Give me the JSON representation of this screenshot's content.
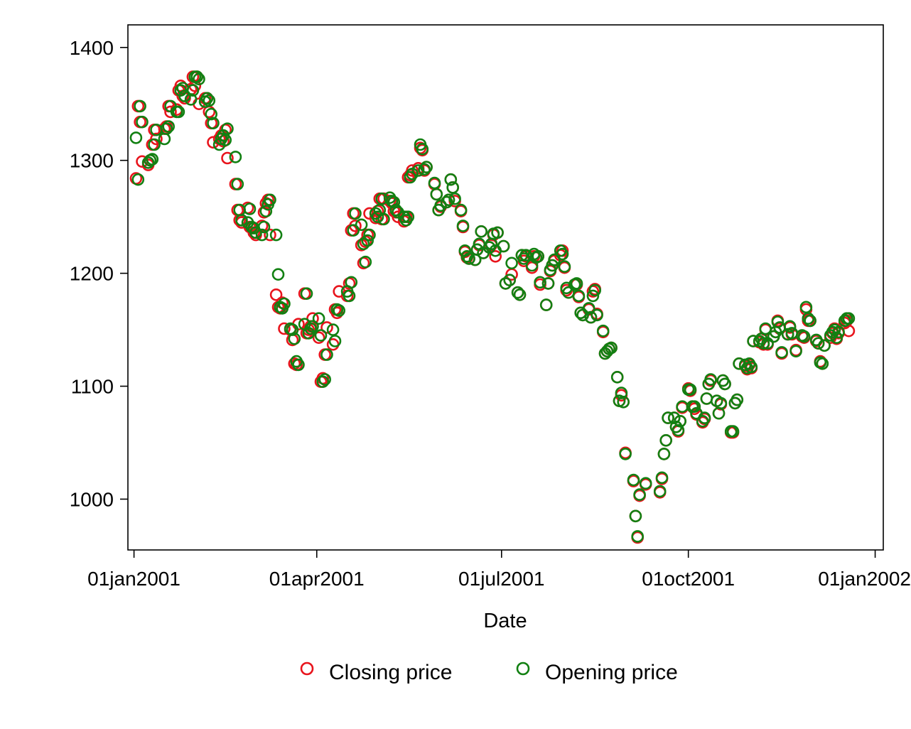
{
  "chart_data": {
    "type": "scatter",
    "title": "",
    "xlabel": "Date",
    "ylabel": "",
    "x_axis": "date",
    "xlim": [
      "2000-12-29",
      "2002-01-05"
    ],
    "ylim": [
      955,
      1420
    ],
    "grid": false,
    "legend_position": "bottom",
    "x_ticks": [
      {
        "date": "2001-01-01",
        "label": "01jan2001"
      },
      {
        "date": "2001-04-01",
        "label": "01apr2001"
      },
      {
        "date": "2001-07-01",
        "label": "01jul2001"
      },
      {
        "date": "2001-10-01",
        "label": "01oct2001"
      },
      {
        "date": "2002-01-01",
        "label": "01jan2002"
      }
    ],
    "y_ticks": [
      {
        "value": 1000,
        "label": "1000"
      },
      {
        "value": 1100,
        "label": "1100"
      },
      {
        "value": 1200,
        "label": "1200"
      },
      {
        "value": 1300,
        "label": "1300"
      },
      {
        "value": 1400,
        "label": "1400"
      }
    ],
    "dates": [
      "2001-01-02",
      "2001-01-03",
      "2001-01-04",
      "2001-01-05",
      "2001-01-08",
      "2001-01-09",
      "2001-01-10",
      "2001-01-11",
      "2001-01-12",
      "2001-01-16",
      "2001-01-17",
      "2001-01-18",
      "2001-01-19",
      "2001-01-22",
      "2001-01-23",
      "2001-01-24",
      "2001-01-25",
      "2001-01-26",
      "2001-01-29",
      "2001-01-30",
      "2001-01-31",
      "2001-02-01",
      "2001-02-02",
      "2001-02-05",
      "2001-02-06",
      "2001-02-07",
      "2001-02-08",
      "2001-02-09",
      "2001-02-12",
      "2001-02-13",
      "2001-02-14",
      "2001-02-15",
      "2001-02-16",
      "2001-02-20",
      "2001-02-21",
      "2001-02-22",
      "2001-02-23",
      "2001-02-26",
      "2001-02-27",
      "2001-02-28",
      "2001-03-01",
      "2001-03-02",
      "2001-03-05",
      "2001-03-06",
      "2001-03-07",
      "2001-03-08",
      "2001-03-09",
      "2001-03-12",
      "2001-03-13",
      "2001-03-14",
      "2001-03-15",
      "2001-03-16",
      "2001-03-19",
      "2001-03-20",
      "2001-03-21",
      "2001-03-22",
      "2001-03-23",
      "2001-03-26",
      "2001-03-27",
      "2001-03-28",
      "2001-03-29",
      "2001-03-30",
      "2001-04-02",
      "2001-04-03",
      "2001-04-04",
      "2001-04-05",
      "2001-04-06",
      "2001-04-09",
      "2001-04-10",
      "2001-04-11",
      "2001-04-12",
      "2001-04-16",
      "2001-04-17",
      "2001-04-18",
      "2001-04-19",
      "2001-04-20",
      "2001-04-23",
      "2001-04-24",
      "2001-04-25",
      "2001-04-26",
      "2001-04-27",
      "2001-04-30",
      "2001-05-01",
      "2001-05-02",
      "2001-05-03",
      "2001-05-04",
      "2001-05-07",
      "2001-05-08",
      "2001-05-09",
      "2001-05-10",
      "2001-05-11",
      "2001-05-14",
      "2001-05-15",
      "2001-05-16",
      "2001-05-17",
      "2001-05-18",
      "2001-05-21",
      "2001-05-22",
      "2001-05-23",
      "2001-05-24",
      "2001-05-25",
      "2001-05-29",
      "2001-05-30",
      "2001-05-31",
      "2001-06-01",
      "2001-06-04",
      "2001-06-05",
      "2001-06-06",
      "2001-06-07",
      "2001-06-08",
      "2001-06-11",
      "2001-06-12",
      "2001-06-13",
      "2001-06-14",
      "2001-06-15",
      "2001-06-18",
      "2001-06-19",
      "2001-06-20",
      "2001-06-21",
      "2001-06-22",
      "2001-06-25",
      "2001-06-26",
      "2001-06-27",
      "2001-06-28",
      "2001-06-29",
      "2001-07-02",
      "2001-07-03",
      "2001-07-05",
      "2001-07-06",
      "2001-07-09",
      "2001-07-10",
      "2001-07-11",
      "2001-07-12",
      "2001-07-13",
      "2001-07-16",
      "2001-07-17",
      "2001-07-18",
      "2001-07-19",
      "2001-07-20",
      "2001-07-23",
      "2001-07-24",
      "2001-07-25",
      "2001-07-26",
      "2001-07-27",
      "2001-07-30",
      "2001-07-31",
      "2001-08-01",
      "2001-08-02",
      "2001-08-03",
      "2001-08-06",
      "2001-08-07",
      "2001-08-08",
      "2001-08-09",
      "2001-08-10",
      "2001-08-13",
      "2001-08-14",
      "2001-08-15",
      "2001-08-16",
      "2001-08-17",
      "2001-08-20",
      "2001-08-21",
      "2001-08-22",
      "2001-08-23",
      "2001-08-24",
      "2001-08-27",
      "2001-08-28",
      "2001-08-29",
      "2001-08-30",
      "2001-08-31",
      "2001-09-04",
      "2001-09-05",
      "2001-09-06",
      "2001-09-07",
      "2001-09-10",
      "2001-09-17",
      "2001-09-18",
      "2001-09-19",
      "2001-09-20",
      "2001-09-21",
      "2001-09-24",
      "2001-09-25",
      "2001-09-26",
      "2001-09-27",
      "2001-09-28",
      "2001-10-01",
      "2001-10-02",
      "2001-10-03",
      "2001-10-04",
      "2001-10-05",
      "2001-10-08",
      "2001-10-09",
      "2001-10-10",
      "2001-10-11",
      "2001-10-12",
      "2001-10-15",
      "2001-10-16",
      "2001-10-17",
      "2001-10-18",
      "2001-10-19",
      "2001-10-22",
      "2001-10-23",
      "2001-10-24",
      "2001-10-25",
      "2001-10-26",
      "2001-10-29",
      "2001-10-30",
      "2001-10-31",
      "2001-11-01",
      "2001-11-02",
      "2001-11-05",
      "2001-11-06",
      "2001-11-07",
      "2001-11-08",
      "2001-11-09",
      "2001-11-12",
      "2001-11-13",
      "2001-11-14",
      "2001-11-15",
      "2001-11-16",
      "2001-11-19",
      "2001-11-20",
      "2001-11-21",
      "2001-11-23",
      "2001-11-26",
      "2001-11-27",
      "2001-11-28",
      "2001-11-29",
      "2001-11-30",
      "2001-12-03",
      "2001-12-04",
      "2001-12-05",
      "2001-12-06",
      "2001-12-07",
      "2001-12-10",
      "2001-12-11",
      "2001-12-12",
      "2001-12-13",
      "2001-12-14",
      "2001-12-17",
      "2001-12-18",
      "2001-12-19",
      "2001-12-20",
      "2001-12-21",
      "2001-12-24",
      "2001-12-26",
      "2001-12-27",
      "2001-12-28",
      "2001-12-31"
    ],
    "series": [
      {
        "name": "Closing price",
        "color": "#e8141c",
        "marker": "hollow-circle",
        "values": [
          1284,
          1348,
          1334,
          1299,
          1296,
          1300,
          1314,
          1327,
          1319,
          1328,
          1330,
          1348,
          1343,
          1345,
          1362,
          1366,
          1357,
          1355,
          1363,
          1374,
          1366,
          1374,
          1350,
          1355,
          1355,
          1343,
          1333,
          1316,
          1319,
          1322,
          1317,
          1327,
          1302,
          1279,
          1256,
          1247,
          1245,
          1258,
          1241,
          1240,
          1236,
          1234,
          1242,
          1254,
          1262,
          1265,
          1234,
          1181,
          1170,
          1169,
          1174,
          1151,
          1150,
          1141,
          1120,
          1119,
          1155,
          1182,
          1147,
          1150,
          1153,
          1160,
          1143,
          1104,
          1107,
          1128,
          1152,
          1137,
          1168,
          1165,
          1184,
          1180,
          1191,
          1238,
          1253,
          1242,
          1225,
          1209,
          1228,
          1234,
          1253,
          1249,
          1255,
          1266,
          1248,
          1266,
          1264,
          1262,
          1255,
          1254,
          1250,
          1246,
          1250,
          1285,
          1287,
          1291,
          1293,
          1311,
          1309,
          1291,
          1294,
          1279,
          1270,
          1256,
          1259,
          1263,
          1265,
          1283,
          1276,
          1264,
          1255,
          1241,
          1219,
          1214,
          1213,
          1212,
          1221,
          1225,
          1237,
          1218,
          1223,
          1225,
          1234,
          1215,
          1236,
          1224,
          1191,
          1194,
          1199,
          1183,
          1181,
          1216,
          1211,
          1215,
          1205,
          1215,
          1214,
          1215,
          1190,
          1172,
          1191,
          1202,
          1207,
          1211,
          1216,
          1220,
          1205,
          1185,
          1183,
          1190,
          1190,
          1179,
          1165,
          1163,
          1168,
          1161,
          1184,
          1186,
          1164,
          1148,
          1129,
          1131,
          1133,
          1134,
          1108,
          1087,
          1092,
          1086,
          1041,
          1016,
          985,
          966,
          1003,
          1013,
          1006,
          1018,
          1040,
          1052,
          1072,
          1072,
          1064,
          1060,
          1069,
          1081,
          1098,
          1096,
          1082,
          1080,
          1075,
          1068,
          1071,
          1089,
          1102,
          1105,
          1087,
          1076,
          1084,
          1105,
          1102,
          1059,
          1059,
          1085,
          1088,
          1120,
          1118,
          1115,
          1119,
          1116,
          1140,
          1139,
          1142,
          1137,
          1150,
          1137,
          1144,
          1148,
          1158,
          1151,
          1129,
          1146,
          1152,
          1146,
          1132,
          1144,
          1143,
          1168,
          1158,
          1158,
          1140,
          1138,
          1122,
          1120,
          1136,
          1143,
          1147,
          1151,
          1142,
          1147,
          1156,
          1158,
          1149
        ]
      },
      {
        "name": "Opening price",
        "color": "#128012",
        "marker": "hollow-circle",
        "values": [
          1320,
          1283,
          1348,
          1334,
          1298,
          1300,
          1301,
          1314,
          1327,
          1319,
          1328,
          1330,
          1348,
          1343,
          1343,
          1362,
          1364,
          1357,
          1354,
          1362,
          1374,
          1374,
          1372,
          1352,
          1355,
          1353,
          1341,
          1333,
          1314,
          1319,
          1322,
          1318,
          1328,
          1303,
          1279,
          1256,
          1247,
          1245,
          1257,
          1241,
          1240,
          1236,
          1234,
          1241,
          1255,
          1261,
          1265,
          1234,
          1199,
          1170,
          1169,
          1173,
          1151,
          1150,
          1142,
          1122,
          1119,
          1155,
          1182,
          1147,
          1151,
          1153,
          1160,
          1145,
          1104,
          1106,
          1128,
          1150,
          1140,
          1168,
          1167,
          1184,
          1180,
          1192,
          1238,
          1253,
          1243,
          1226,
          1210,
          1229,
          1234,
          1253,
          1250,
          1256,
          1266,
          1248,
          1267,
          1264,
          1263,
          1256,
          1254,
          1250,
          1247,
          1250,
          1285,
          1288,
          1291,
          1314,
          1310,
          1292,
          1294,
          1280,
          1270,
          1256,
          1260,
          1263,
          1265,
          1283,
          1276,
          1266,
          1256,
          1242,
          1220,
          1215,
          1213,
          1212,
          1221,
          1226,
          1237,
          1218,
          1223,
          1226,
          1235,
          1220,
          1236,
          1224,
          1191,
          1194,
          1209,
          1183,
          1181,
          1216,
          1213,
          1216,
          1207,
          1217,
          1214,
          1215,
          1192,
          1172,
          1191,
          1203,
          1207,
          1212,
          1220,
          1217,
          1206,
          1187,
          1183,
          1190,
          1191,
          1180,
          1165,
          1163,
          1169,
          1161,
          1180,
          1185,
          1163,
          1149,
          1129,
          1131,
          1133,
          1134,
          1108,
          1087,
          1094,
          1086,
          1040,
          1017,
          985,
          967,
          1004,
          1014,
          1007,
          1019,
          1040,
          1052,
          1072,
          1072,
          1064,
          1061,
          1069,
          1082,
          1097,
          1097,
          1082,
          1082,
          1076,
          1069,
          1072,
          1089,
          1102,
          1106,
          1087,
          1076,
          1085,
          1105,
          1102,
          1060,
          1060,
          1085,
          1088,
          1120,
          1119,
          1116,
          1120,
          1117,
          1140,
          1140,
          1142,
          1138,
          1151,
          1138,
          1144,
          1148,
          1157,
          1152,
          1130,
          1146,
          1153,
          1147,
          1131,
          1145,
          1144,
          1170,
          1160,
          1158,
          1141,
          1138,
          1121,
          1120,
          1136,
          1145,
          1148,
          1150,
          1143,
          1148,
          1158,
          1160,
          1160
        ]
      }
    ]
  }
}
